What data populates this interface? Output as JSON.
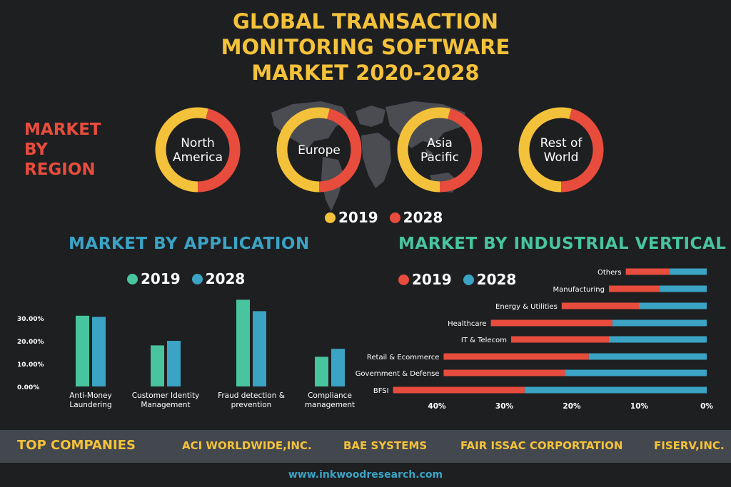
{
  "title": {
    "line1": "GLOBAL TRANSACTION",
    "line2": "MONITORING SOFTWARE",
    "line3": "MARKET 2020-2028"
  },
  "region": {
    "heading_lines": [
      "MARKET",
      "BY",
      "REGION"
    ],
    "legend": [
      {
        "label": "2019",
        "color": "#f4c23a"
      },
      {
        "label": "2028",
        "color": "#e84c3d"
      }
    ]
  },
  "application": {
    "heading": "MARKET BY APPLICATION",
    "legend": [
      {
        "label": "2019",
        "color": "#48c49e"
      },
      {
        "label": "2028",
        "color": "#3ba3c4"
      }
    ]
  },
  "vertical": {
    "heading": "MARKET BY INDUSTRIAL VERTICAL",
    "legend": [
      {
        "label": "2019",
        "color": "#e84c3d"
      },
      {
        "label": "2028",
        "color": "#3ba3c4"
      }
    ]
  },
  "chart_data": [
    {
      "type": "pie",
      "title": "MARKET BY REGION",
      "style": "donut",
      "series": [
        {
          "name": "2019",
          "color": "#f4c23a"
        },
        {
          "name": "2028",
          "color": "#e84c3d"
        }
      ],
      "donuts": [
        {
          "label_lines": [
            "North",
            "America"
          ],
          "values": [
            54,
            46
          ]
        },
        {
          "label_lines": [
            "Europe"
          ],
          "values": [
            54,
            46
          ]
        },
        {
          "label_lines": [
            "Asia",
            "Pacific"
          ],
          "values": [
            54,
            46
          ]
        },
        {
          "label_lines": [
            "Rest of",
            "World"
          ],
          "values": [
            54,
            46
          ]
        }
      ]
    },
    {
      "type": "bar",
      "title": "MARKET BY APPLICATION",
      "categories": [
        [
          "Anti-Money",
          "Laundering"
        ],
        [
          "Customer Identity",
          "Management"
        ],
        [
          "Fraud detection &",
          "prevention"
        ],
        [
          "Compliance",
          "management"
        ]
      ],
      "series": [
        {
          "name": "2019",
          "color": "#48c49e",
          "values": [
            31,
            18,
            38,
            13
          ]
        },
        {
          "name": "2028",
          "color": "#3ba3c4",
          "values": [
            30.5,
            20,
            33,
            16.5
          ]
        }
      ],
      "yticks": [
        "0.00%",
        "10.00%",
        "20.00%",
        "30.00%"
      ],
      "ytick_values": [
        0,
        10,
        20,
        30
      ],
      "ylim": [
        0,
        40
      ]
    },
    {
      "type": "bar",
      "orientation": "horizontal-stacked",
      "title": "MARKET BY INDUSTRIAL VERTICAL",
      "categories": [
        "Others",
        "Manufacturing",
        "Energy & Utilities",
        "Healthcare",
        "IT & Telecom",
        "Retail & Ecommerce",
        "Government & Defense",
        "BFSI"
      ],
      "series": [
        {
          "name": "2019",
          "color": "#e84c3d",
          "values": [
            6.5,
            7.5,
            11.5,
            18,
            14.5,
            21.5,
            18,
            19.5
          ]
        },
        {
          "name": "2028",
          "color": "#3ba3c4",
          "values": [
            5.5,
            7,
            10,
            14,
            14.5,
            17.5,
            21,
            27
          ]
        }
      ],
      "xticks": [
        "40%",
        "30%",
        "20%",
        "10%",
        "0%"
      ],
      "xtick_values": [
        40,
        30,
        20,
        10,
        0
      ],
      "xlim": [
        46,
        0
      ]
    }
  ],
  "footer": {
    "label": "TOP COMPANIES",
    "companies": [
      "ACI WORLDWIDE,INC.",
      "BAE SYSTEMS",
      "FAIR ISSAC CORPORTATION",
      "FISERV,INC."
    ],
    "url": "www.inkwoodresearch.com"
  }
}
